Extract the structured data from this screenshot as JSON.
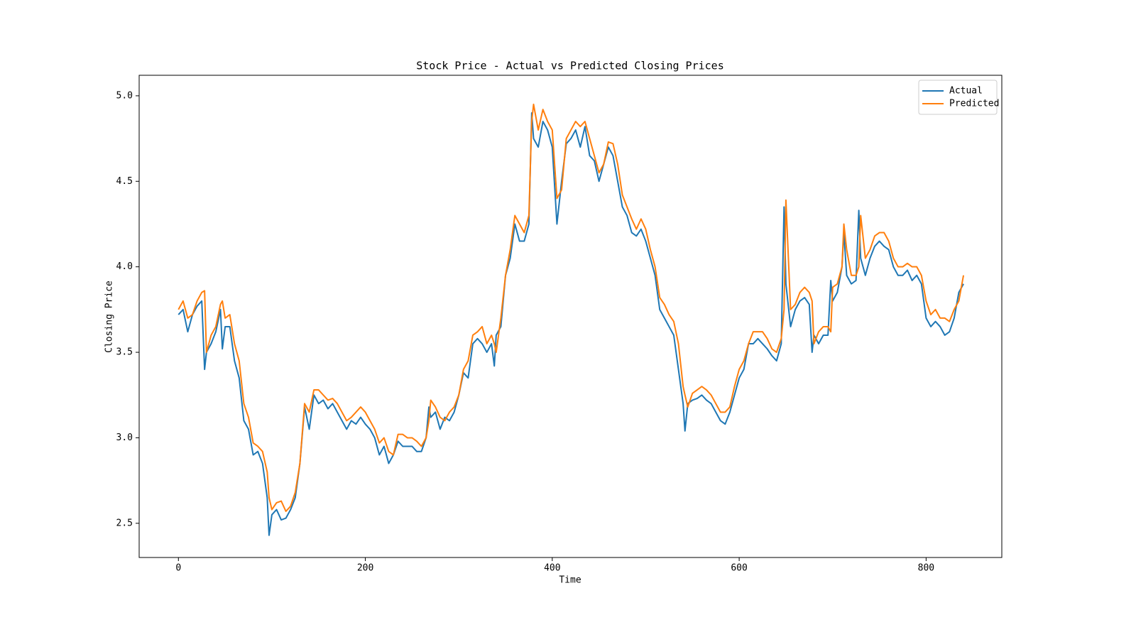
{
  "chart_data": {
    "type": "line",
    "title": "Stock Price - Actual vs Predicted Closing Prices",
    "xlabel": "Time",
    "ylabel": "Closing Price",
    "x": [
      0,
      5,
      10,
      15,
      20,
      25,
      28,
      30,
      35,
      40,
      45,
      47,
      50,
      55,
      60,
      65,
      70,
      75,
      80,
      85,
      90,
      95,
      97,
      100,
      105,
      110,
      115,
      120,
      125,
      130,
      135,
      140,
      145,
      150,
      155,
      160,
      165,
      170,
      175,
      180,
      185,
      190,
      195,
      200,
      205,
      210,
      215,
      220,
      225,
      230,
      235,
      240,
      245,
      250,
      255,
      260,
      265,
      268,
      270,
      275,
      280,
      285,
      290,
      295,
      300,
      305,
      310,
      315,
      320,
      325,
      330,
      335,
      338,
      340,
      345,
      350,
      355,
      360,
      365,
      370,
      375,
      378,
      380,
      385,
      390,
      395,
      400,
      405,
      410,
      415,
      420,
      425,
      430,
      435,
      440,
      445,
      450,
      455,
      460,
      465,
      470,
      475,
      480,
      485,
      490,
      495,
      500,
      505,
      510,
      515,
      520,
      525,
      530,
      535,
      540,
      542,
      545,
      550,
      555,
      560,
      565,
      570,
      575,
      580,
      585,
      590,
      595,
      600,
      605,
      610,
      615,
      620,
      625,
      630,
      635,
      640,
      645,
      648,
      650,
      655,
      660,
      665,
      670,
      675,
      678,
      680,
      685,
      690,
      695,
      698,
      700,
      705,
      710,
      712,
      715,
      720,
      725,
      728,
      730,
      735,
      740,
      745,
      750,
      755,
      760,
      765,
      770,
      775,
      780,
      785,
      790,
      795,
      800,
      805,
      810,
      815,
      820,
      825,
      830,
      835,
      840
    ],
    "series": [
      {
        "name": "Actual",
        "color": "#1f77b4",
        "values": [
          3.72,
          3.75,
          3.62,
          3.72,
          3.77,
          3.8,
          3.4,
          3.5,
          3.55,
          3.62,
          3.75,
          3.52,
          3.65,
          3.65,
          3.45,
          3.35,
          3.1,
          3.05,
          2.9,
          2.92,
          2.85,
          2.65,
          2.43,
          2.55,
          2.58,
          2.52,
          2.53,
          2.58,
          2.65,
          2.85,
          3.18,
          3.05,
          3.25,
          3.2,
          3.22,
          3.17,
          3.2,
          3.15,
          3.1,
          3.05,
          3.1,
          3.08,
          3.12,
          3.08,
          3.05,
          3.0,
          2.9,
          2.95,
          2.85,
          2.9,
          2.98,
          2.95,
          2.95,
          2.95,
          2.92,
          2.92,
          3.0,
          3.18,
          3.12,
          3.15,
          3.05,
          3.12,
          3.1,
          3.15,
          3.25,
          3.38,
          3.35,
          3.55,
          3.58,
          3.55,
          3.5,
          3.55,
          3.42,
          3.6,
          3.65,
          3.95,
          4.05,
          4.25,
          4.15,
          4.15,
          4.25,
          4.9,
          4.75,
          4.7,
          4.85,
          4.8,
          4.7,
          4.25,
          4.5,
          4.72,
          4.75,
          4.8,
          4.7,
          4.82,
          4.65,
          4.62,
          4.5,
          4.6,
          4.7,
          4.65,
          4.5,
          4.35,
          4.3,
          4.2,
          4.18,
          4.22,
          4.15,
          4.05,
          3.95,
          3.75,
          3.7,
          3.65,
          3.6,
          3.4,
          3.2,
          3.04,
          3.2,
          3.22,
          3.23,
          3.25,
          3.22,
          3.2,
          3.15,
          3.1,
          3.08,
          3.15,
          3.25,
          3.35,
          3.4,
          3.55,
          3.55,
          3.58,
          3.55,
          3.52,
          3.48,
          3.45,
          3.55,
          4.35,
          3.9,
          3.65,
          3.75,
          3.8,
          3.82,
          3.78,
          3.5,
          3.6,
          3.55,
          3.6,
          3.6,
          3.92,
          3.8,
          3.85,
          4.0,
          4.2,
          3.95,
          3.9,
          3.92,
          4.33,
          4.05,
          3.95,
          4.05,
          4.12,
          4.15,
          4.12,
          4.1,
          4.0,
          3.95,
          3.95,
          3.98,
          3.92,
          3.95,
          3.9,
          3.7,
          3.65,
          3.68,
          3.65,
          3.6,
          3.62,
          3.7,
          3.85,
          3.9
        ]
      },
      {
        "name": "Predicted",
        "color": "#ff7f0e",
        "values": [
          3.75,
          3.8,
          3.7,
          3.72,
          3.8,
          3.85,
          3.86,
          3.5,
          3.6,
          3.65,
          3.78,
          3.8,
          3.7,
          3.72,
          3.55,
          3.45,
          3.2,
          3.12,
          2.97,
          2.95,
          2.92,
          2.8,
          2.65,
          2.58,
          2.62,
          2.63,
          2.57,
          2.6,
          2.68,
          2.85,
          3.2,
          3.15,
          3.28,
          3.28,
          3.25,
          3.22,
          3.23,
          3.2,
          3.15,
          3.1,
          3.12,
          3.15,
          3.18,
          3.15,
          3.1,
          3.05,
          2.97,
          3.0,
          2.92,
          2.9,
          3.02,
          3.02,
          3.0,
          3.0,
          2.98,
          2.95,
          3.0,
          3.1,
          3.22,
          3.18,
          3.12,
          3.1,
          3.15,
          3.18,
          3.25,
          3.4,
          3.45,
          3.6,
          3.62,
          3.65,
          3.55,
          3.6,
          3.55,
          3.5,
          3.7,
          3.95,
          4.1,
          4.3,
          4.25,
          4.2,
          4.3,
          4.85,
          4.95,
          4.8,
          4.92,
          4.85,
          4.8,
          4.4,
          4.45,
          4.75,
          4.8,
          4.85,
          4.82,
          4.85,
          4.75,
          4.65,
          4.55,
          4.6,
          4.73,
          4.72,
          4.6,
          4.42,
          4.35,
          4.28,
          4.22,
          4.28,
          4.22,
          4.1,
          4.0,
          3.82,
          3.78,
          3.72,
          3.68,
          3.55,
          3.3,
          3.25,
          3.18,
          3.26,
          3.28,
          3.3,
          3.28,
          3.25,
          3.2,
          3.15,
          3.15,
          3.18,
          3.3,
          3.4,
          3.45,
          3.55,
          3.62,
          3.62,
          3.62,
          3.58,
          3.52,
          3.5,
          3.58,
          3.75,
          4.39,
          3.75,
          3.78,
          3.85,
          3.88,
          3.85,
          3.8,
          3.55,
          3.62,
          3.65,
          3.65,
          3.62,
          3.88,
          3.9,
          4.0,
          4.25,
          4.1,
          3.95,
          3.95,
          4.0,
          4.3,
          4.05,
          4.1,
          4.18,
          4.2,
          4.2,
          4.15,
          4.05,
          4.0,
          4.0,
          4.02,
          4.0,
          4.0,
          3.95,
          3.8,
          3.72,
          3.75,
          3.7,
          3.7,
          3.68,
          3.75,
          3.8,
          3.95
        ]
      }
    ],
    "xlim": [
      -42,
      881
    ],
    "ylim": [
      2.3,
      5.12
    ],
    "xticks": [
      0,
      200,
      400,
      600,
      800
    ],
    "yticks": [
      2.5,
      {
        "value": 3,
        "label": "3.0"
      },
      3.5,
      {
        "value": 4,
        "label": "4.0"
      },
      4.5,
      {
        "value": 5,
        "label": "5.0"
      }
    ],
    "grid": false,
    "legend": "upper right"
  }
}
